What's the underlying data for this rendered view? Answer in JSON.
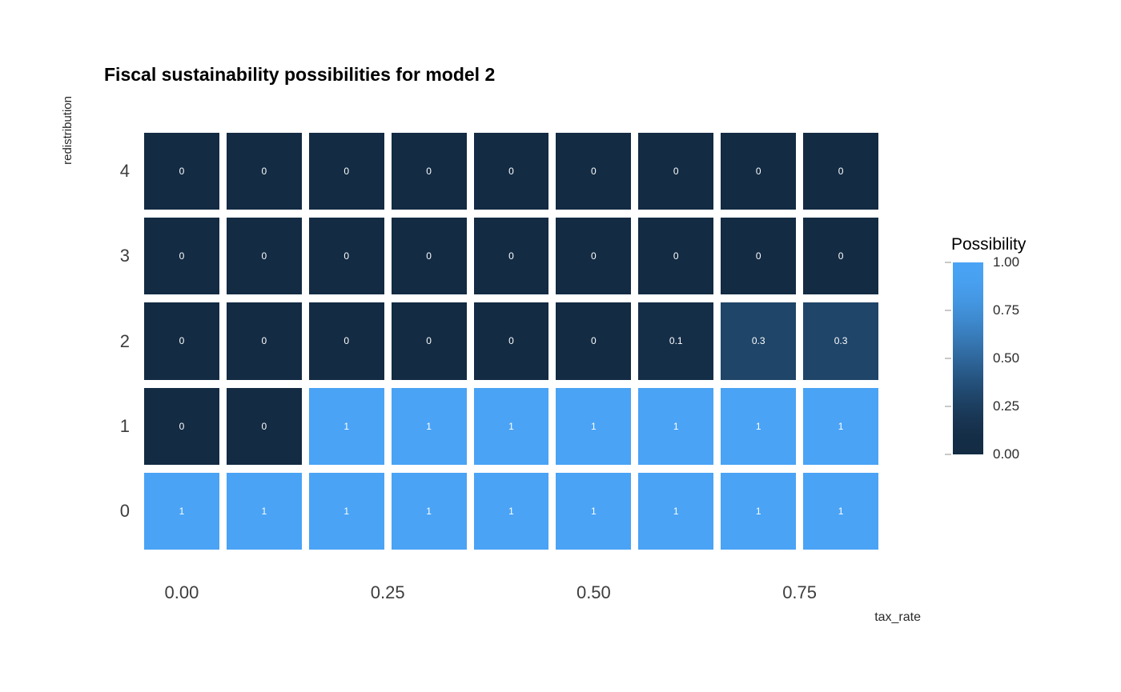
{
  "chart_data": {
    "type": "heatmap",
    "title": "Fiscal sustainability possibilities for model 2",
    "xlabel": "tax_rate",
    "ylabel": "redistribution",
    "x_values": [
      0,
      0.1,
      0.2,
      0.3,
      0.4,
      0.5,
      0.6,
      0.7,
      0.8
    ],
    "y_values": [
      4,
      3,
      2,
      1,
      0
    ],
    "rows": [
      {
        "redistribution": 4,
        "values": [
          0,
          0,
          0,
          0,
          0,
          0,
          0,
          0,
          0
        ]
      },
      {
        "redistribution": 3,
        "values": [
          0,
          0,
          0,
          0,
          0,
          0,
          0,
          0,
          0
        ]
      },
      {
        "redistribution": 2,
        "values": [
          0,
          0,
          0,
          0,
          0,
          0,
          0.1,
          0.3,
          0.3
        ]
      },
      {
        "redistribution": 1,
        "values": [
          0,
          0,
          1,
          1,
          1,
          1,
          1,
          1,
          1
        ]
      },
      {
        "redistribution": 0,
        "values": [
          1,
          1,
          1,
          1,
          1,
          1,
          1,
          1,
          1
        ]
      }
    ],
    "x_ticks": [
      "0.00",
      "0.25",
      "0.50",
      "0.75"
    ],
    "x_tick_values": [
      0,
      0.25,
      0.5,
      0.75
    ],
    "y_ticks": [
      "4",
      "3",
      "2",
      "1",
      "0"
    ],
    "value_range": [
      0,
      1
    ],
    "grid": false,
    "legend": {
      "title": "Possibility",
      "position": "right",
      "ticks": [
        "1.00",
        "0.75",
        "0.50",
        "0.25",
        "0.00"
      ],
      "tick_values": [
        1,
        0.75,
        0.5,
        0.25,
        0
      ]
    },
    "colors": {
      "low": "#132B43",
      "high": "#4AA3F5"
    }
  }
}
